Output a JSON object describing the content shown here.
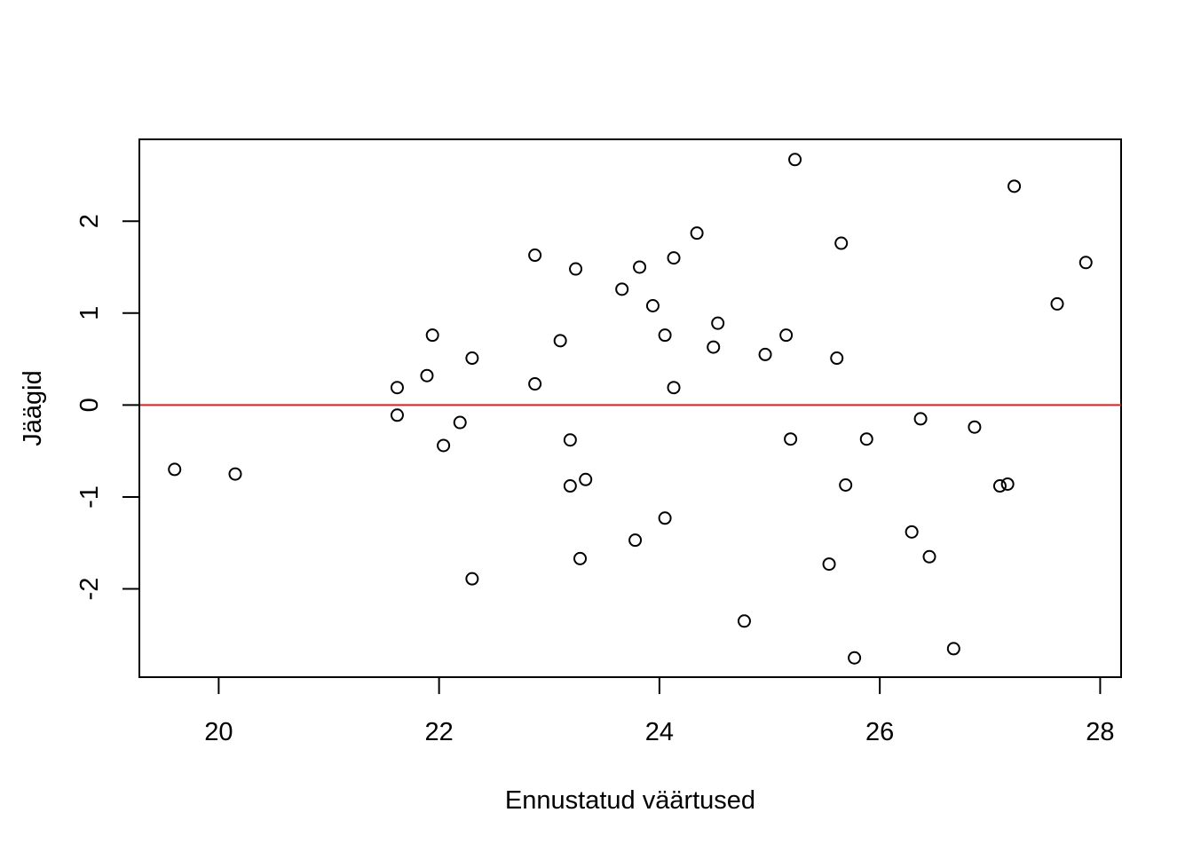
{
  "chart_data": {
    "type": "scatter",
    "title": "",
    "xlabel": "Ennustatud väärtused",
    "ylabel": "Jäägid",
    "xlim": [
      19.28,
      28.19
    ],
    "ylim": [
      -2.96,
      2.89
    ],
    "xticks": [
      20,
      22,
      24,
      26,
      28
    ],
    "yticks": [
      -2,
      -1,
      0,
      1,
      2
    ],
    "xtick_labels": [
      "20",
      "22",
      "24",
      "26",
      "28"
    ],
    "ytick_labels": [
      "-2",
      "-1",
      "0",
      "1",
      "2"
    ],
    "grid": false,
    "marker": "open-circle",
    "reference_line": {
      "y": 0,
      "color": "#e41a1c"
    },
    "points": [
      {
        "x": 19.6,
        "y": -0.7
      },
      {
        "x": 20.15,
        "y": -0.75
      },
      {
        "x": 21.62,
        "y": 0.19
      },
      {
        "x": 21.62,
        "y": -0.11
      },
      {
        "x": 21.89,
        "y": 0.32
      },
      {
        "x": 21.94,
        "y": 0.76
      },
      {
        "x": 22.04,
        "y": -0.44
      },
      {
        "x": 22.19,
        "y": -0.19
      },
      {
        "x": 22.3,
        "y": 0.51
      },
      {
        "x": 22.3,
        "y": -1.89
      },
      {
        "x": 22.87,
        "y": 1.63
      },
      {
        "x": 22.87,
        "y": 0.23
      },
      {
        "x": 23.1,
        "y": 0.7
      },
      {
        "x": 23.19,
        "y": -0.38
      },
      {
        "x": 23.19,
        "y": -0.88
      },
      {
        "x": 23.24,
        "y": 1.48
      },
      {
        "x": 23.28,
        "y": -1.67
      },
      {
        "x": 23.33,
        "y": -0.81
      },
      {
        "x": 23.66,
        "y": 1.26
      },
      {
        "x": 23.78,
        "y": -1.47
      },
      {
        "x": 23.82,
        "y": 1.5
      },
      {
        "x": 23.94,
        "y": 1.08
      },
      {
        "x": 24.05,
        "y": 0.76
      },
      {
        "x": 24.05,
        "y": -1.23
      },
      {
        "x": 24.13,
        "y": 1.6
      },
      {
        "x": 24.13,
        "y": 0.19
      },
      {
        "x": 24.34,
        "y": 1.87
      },
      {
        "x": 24.49,
        "y": 0.63
      },
      {
        "x": 24.53,
        "y": 0.89
      },
      {
        "x": 24.77,
        "y": -2.35
      },
      {
        "x": 24.96,
        "y": 0.55
      },
      {
        "x": 25.15,
        "y": 0.76
      },
      {
        "x": 25.19,
        "y": -0.37
      },
      {
        "x": 25.23,
        "y": 2.67
      },
      {
        "x": 25.54,
        "y": -1.73
      },
      {
        "x": 25.61,
        "y": 0.51
      },
      {
        "x": 25.65,
        "y": 1.76
      },
      {
        "x": 25.69,
        "y": -0.87
      },
      {
        "x": 25.77,
        "y": -2.75
      },
      {
        "x": 25.88,
        "y": -0.37
      },
      {
        "x": 26.29,
        "y": -1.38
      },
      {
        "x": 26.37,
        "y": -0.15
      },
      {
        "x": 26.45,
        "y": -1.65
      },
      {
        "x": 26.67,
        "y": -2.65
      },
      {
        "x": 26.86,
        "y": -0.24
      },
      {
        "x": 27.09,
        "y": -0.88
      },
      {
        "x": 27.16,
        "y": -0.86
      },
      {
        "x": 27.22,
        "y": 2.38
      },
      {
        "x": 27.61,
        "y": 1.1
      },
      {
        "x": 27.87,
        "y": 1.55
      }
    ]
  }
}
